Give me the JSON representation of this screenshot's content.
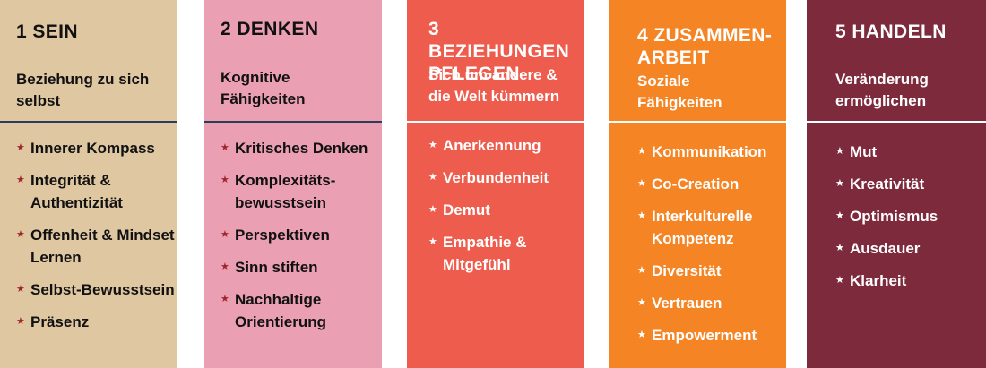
{
  "colors": {
    "sein": "#dfc7a2",
    "denken": "#ea9fb2",
    "beziehungen": "#ed5c4d",
    "zusammenarbeit": "#f58424",
    "handeln": "#7d2a3c",
    "star_dark": "#a0262c",
    "divider_dark": "#2a3d5a"
  },
  "columns": [
    {
      "title": "1 SEIN",
      "subtitle": "Beziehung zu sich\nselbst",
      "items": [
        "Innerer Kompass",
        "Integrität &\nAuthentizität",
        "Offenheit & Mindset\nLernen",
        "Selbst-Bewusstsein",
        "Präsenz"
      ]
    },
    {
      "title": "2 DENKEN",
      "subtitle": "Kognitive\nFähigkeiten",
      "items": [
        "Kritisches Denken",
        "Komplexitäts-\nbewusstsein",
        "Perspektiven",
        "Sinn stiften",
        "Nachhaltige\nOrientierung"
      ]
    },
    {
      "title": "3 BEZIEHUNGEN\nPFLEGEN",
      "subtitle": "Sich um andere &\ndie Welt kümmern",
      "items": [
        "Anerkennung",
        "Verbundenheit",
        "Demut",
        "Empathie &\nMitgefühl"
      ]
    },
    {
      "title": "4 ZUSAMMEN-\nARBEIT",
      "subtitle": "Soziale\nFähigkeiten",
      "items": [
        "Kommunikation",
        "Co-Creation",
        "Interkulturelle\nKompetenz",
        "Diversität",
        "Vertrauen",
        "Empowerment"
      ]
    },
    {
      "title": "5 HANDELN",
      "subtitle": "Veränderung\nermöglichen",
      "items": [
        "Mut",
        "Kreativität",
        "Optimismus",
        "Ausdauer",
        "Klarheit"
      ]
    }
  ],
  "star_glyph": "★"
}
